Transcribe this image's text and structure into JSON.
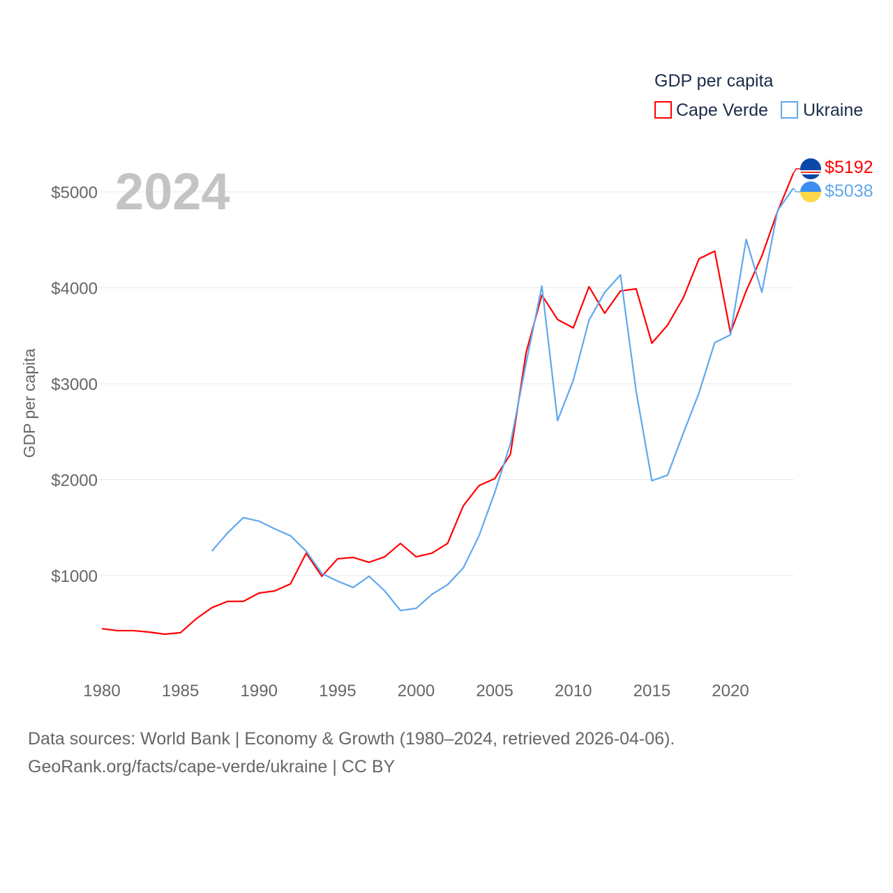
{
  "chart_data": {
    "type": "line",
    "title": "GDP per capita",
    "year_label": "2024",
    "xlabel": "",
    "ylabel": "GDP per capita",
    "xlim": [
      1980,
      2024
    ],
    "ylim": [
      0,
      5400
    ],
    "x_ticks": [
      1980,
      1985,
      1990,
      1995,
      2000,
      2005,
      2010,
      2015,
      2020
    ],
    "y_ticks": [
      1000,
      2000,
      3000,
      4000,
      5000
    ],
    "y_tick_labels": [
      "$1000",
      "$2000",
      "$3000",
      "$4000",
      "$5000"
    ],
    "grid": true,
    "legend_position": "top-right",
    "series": [
      {
        "name": "Cape Verde",
        "color": "#ff0000",
        "end_label": "$5192",
        "x": [
          1980,
          1981,
          1982,
          1983,
          1984,
          1985,
          1986,
          1987,
          1988,
          1989,
          1990,
          1991,
          1992,
          1993,
          1994,
          1995,
          1996,
          1997,
          1998,
          1999,
          2000,
          2001,
          2002,
          2003,
          2004,
          2005,
          2006,
          2007,
          2008,
          2009,
          2010,
          2011,
          2012,
          2013,
          2014,
          2015,
          2016,
          2017,
          2018,
          2019,
          2020,
          2021,
          2022,
          2023,
          2024
        ],
        "values": [
          447,
          426,
          426,
          411,
          389,
          404,
          549,
          665,
          731,
          731,
          818,
          840,
          913,
          1233,
          993,
          1175,
          1189,
          1138,
          1196,
          1335,
          1196,
          1233,
          1335,
          1727,
          1938,
          2011,
          2265,
          3327,
          3924,
          3669,
          3582,
          4011,
          3735,
          3967,
          3989,
          3422,
          3611,
          3895,
          4302,
          4382,
          3531,
          3967,
          4331,
          4796,
          5192
        ]
      },
      {
        "name": "Ukraine",
        "color": "#5fa8ee",
        "end_label": "$5038",
        "x": [
          1987,
          1988,
          1989,
          1990,
          1991,
          1992,
          1993,
          1994,
          1995,
          1996,
          1997,
          1998,
          1999,
          2000,
          2001,
          2002,
          2003,
          2004,
          2005,
          2006,
          2007,
          2008,
          2009,
          2010,
          2011,
          2012,
          2013,
          2014,
          2015,
          2016,
          2017,
          2018,
          2019,
          2020,
          2021,
          2022,
          2023,
          2024
        ],
        "values": [
          1255,
          1444,
          1604,
          1567,
          1487,
          1415,
          1255,
          1022,
          942,
          876,
          993,
          840,
          636,
          658,
          804,
          905,
          1080,
          1415,
          1865,
          2375,
          3218,
          4018,
          2615,
          3036,
          3662,
          3953,
          4135,
          2920,
          1989,
          2047,
          2484,
          2905,
          3429,
          3509,
          4505,
          3953,
          4804,
          5038
        ]
      }
    ]
  },
  "footer": {
    "line1": "Data sources: World Bank | Economy & Growth (1980–2024, retrieved 2026-04-06).",
    "line2": "GeoRank.org/facts/cape-verde/ukraine | CC BY"
  }
}
